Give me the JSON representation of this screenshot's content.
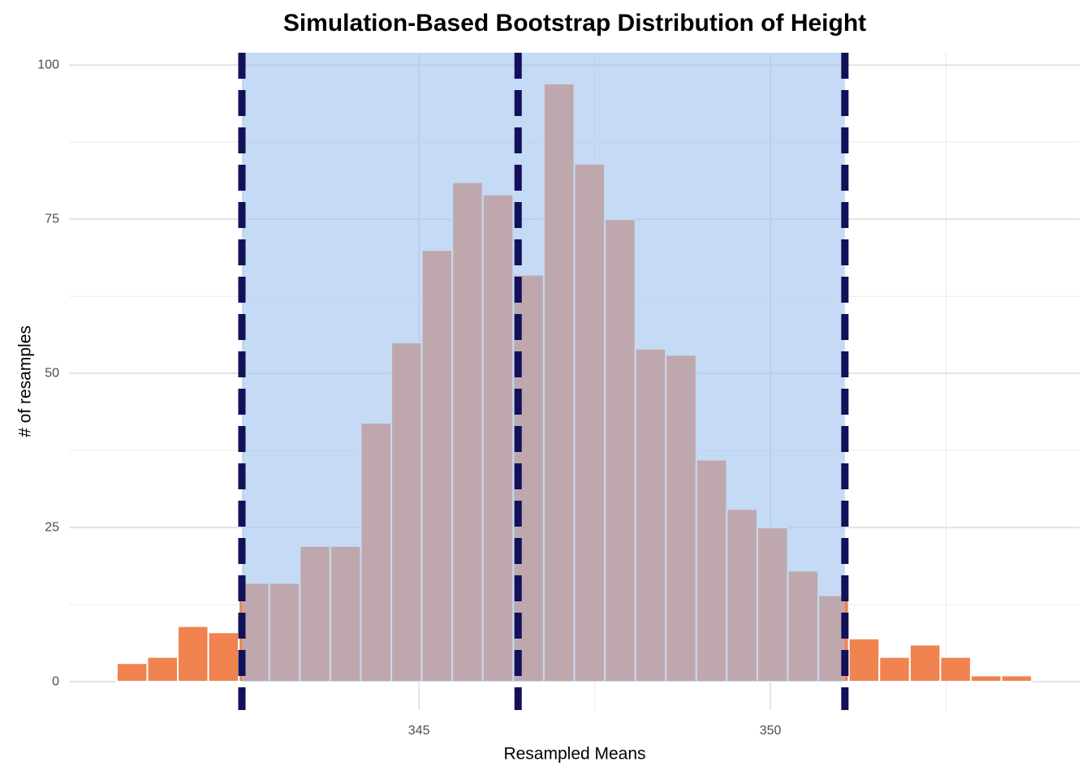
{
  "chart_data": {
    "type": "histogram",
    "title": "Simulation-Based Bootstrap Distribution of Height",
    "x_label": "Resampled Means",
    "y_label": "# of resamples",
    "bins": [
      340.7,
      341.134,
      341.568,
      342.002,
      342.436,
      342.87,
      343.304,
      343.738,
      344.172,
      344.606,
      345.04,
      345.474,
      345.908,
      346.342,
      346.776,
      347.21,
      347.644,
      348.078,
      348.512,
      348.946,
      349.38,
      349.814,
      350.248,
      350.682,
      351.116,
      351.55,
      351.984,
      352.418,
      352.852,
      353.286,
      353.72
    ],
    "counts": [
      3,
      4,
      9,
      8,
      16,
      16,
      22,
      22,
      42,
      55,
      70,
      81,
      79,
      66,
      97,
      84,
      75,
      54,
      53,
      36,
      28,
      25,
      18,
      14,
      7,
      4,
      6,
      4,
      1,
      1
    ],
    "color": "#f0834f",
    "ci": [
      342.48,
      351.06
    ],
    "center": 346.41,
    "shade_color": "#9fc2ec",
    "line_color": "#13105a",
    "xlim": [
      340.02,
      354.4
    ],
    "ylim": [
      -4.6,
      102
    ],
    "xticks": [
      345,
      350
    ],
    "yticks": [
      0,
      25,
      50,
      75,
      100
    ],
    "x_minor_grid": [
      342.5,
      347.5,
      352.5
    ],
    "y_minor_grid": [
      12.5,
      37.5,
      62.5,
      87.5
    ],
    "grid": true
  }
}
